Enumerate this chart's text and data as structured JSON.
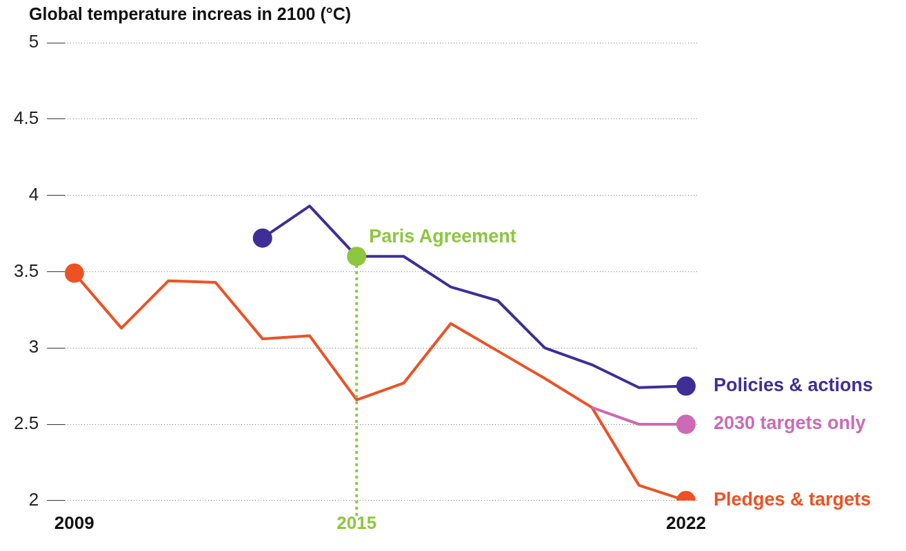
{
  "chart_data": {
    "type": "line",
    "title": "Global temperature increas in 2100 (°C)",
    "x": [
      2009,
      2010,
      2011,
      2012,
      2013,
      2014,
      2015,
      2016,
      2017,
      2018,
      2019,
      2020,
      2021,
      2022
    ],
    "series": [
      {
        "name": "Policies & actions",
        "color": "#3f2e96",
        "values": [
          null,
          null,
          null,
          null,
          3.72,
          3.93,
          3.6,
          3.6,
          3.4,
          3.31,
          3.0,
          2.89,
          2.74,
          2.75
        ]
      },
      {
        "name": "2030 targets only",
        "color": "#cc6bb4",
        "values": [
          null,
          null,
          null,
          null,
          null,
          null,
          null,
          null,
          null,
          null,
          null,
          2.61,
          2.5,
          2.5
        ]
      },
      {
        "name": "Pledges & targets",
        "color": "#ec5224",
        "values": [
          3.49,
          3.13,
          3.44,
          3.43,
          3.06,
          3.08,
          2.66,
          2.77,
          3.16,
          2.98,
          2.8,
          2.61,
          2.1,
          2.0
        ]
      }
    ],
    "xlim": [
      2008.8,
      2022.25
    ],
    "xticks": [
      2009,
      2015,
      2022
    ],
    "ylim": [
      2,
      5
    ],
    "yticks": [
      2,
      {
        "value": 2.5,
        "label": "2.5"
      },
      3,
      {
        "value": 3.5,
        "label": "3.5"
      },
      4,
      {
        "value": 4.5,
        "label": "4.5"
      },
      5
    ],
    "ref_lines": [
      {
        "axis": "x",
        "value": 2015,
        "label": "Paris Agreement",
        "color": "#8dc63f",
        "line_style": "dotted"
      }
    ],
    "grid": "y",
    "legend": false,
    "marker": "none",
    "line_style": "solid"
  }
}
